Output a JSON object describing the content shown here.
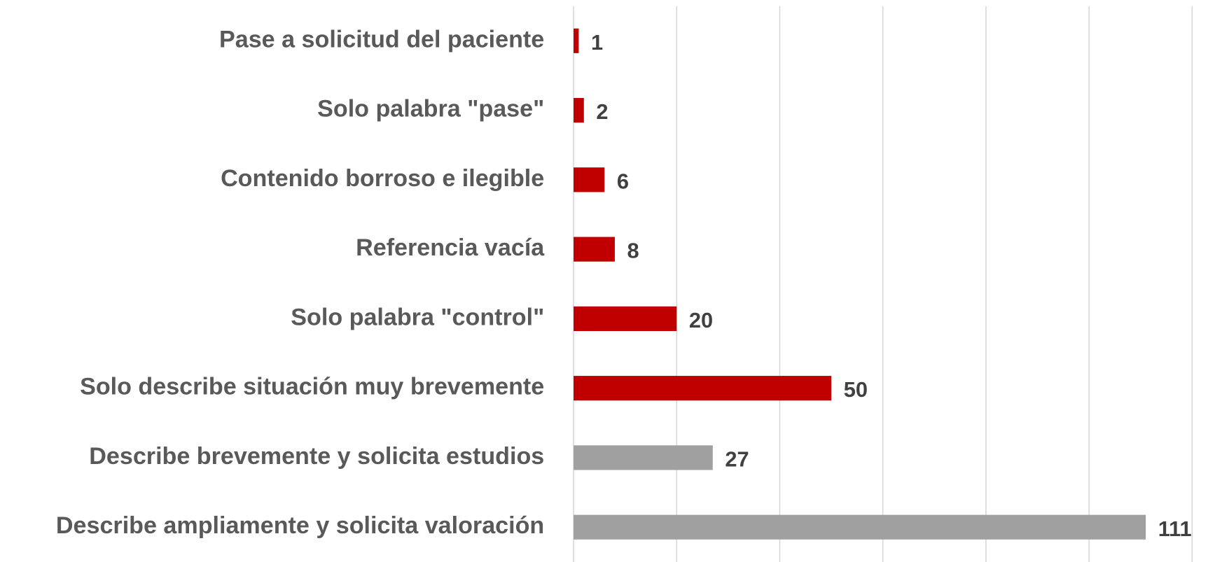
{
  "chart_data": {
    "type": "barh",
    "categories": [
      "Pase a solicitud  del paciente",
      "Solo palabra  \"pase\"",
      "Contenido  borroso e ilegible",
      "Referencia vacía",
      "Solo palabra  \"control\"",
      "Solo describe situación  muy brevemente",
      "Describe brevemente y solicita  estudios",
      "Describe ampliamente  y solicita  valoración"
    ],
    "values": [
      1,
      2,
      6,
      8,
      20,
      50,
      27,
      111
    ],
    "colors": [
      "#c00000",
      "#c00000",
      "#c00000",
      "#c00000",
      "#c00000",
      "#c00000",
      "#a0a0a0",
      "#a0a0a0"
    ],
    "xlim": [
      0,
      120
    ],
    "xticks": [
      0,
      20,
      40,
      60,
      80,
      100,
      120
    ],
    "grid": true
  }
}
